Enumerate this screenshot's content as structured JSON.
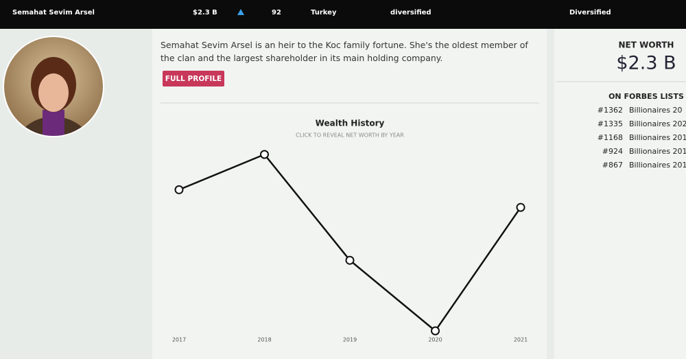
{
  "header": {
    "name": "Semahat Sevim Arsel",
    "net_worth": "$2.3 B",
    "rank": "92",
    "country": "Turkey",
    "source": "diversified",
    "industry": "Diversified"
  },
  "profile": {
    "description": "Semahat Sevim Arsel is an heir to the Koc family fortune. She's the oldest member of the clan and the largest shareholder in its main holding company.",
    "button": "FULL PROFILE"
  },
  "chart_data": {
    "type": "line",
    "title": "Wealth History",
    "subtitle": "CLICK TO REVEAL NET WORTH BY YEAR",
    "categories": [
      "2017",
      "2018",
      "2019",
      "2020",
      "2021"
    ],
    "values": [
      2.5,
      2.9,
      1.7,
      0.9,
      2.3
    ],
    "color": "#111111",
    "ylim": [
      0.9,
      2.9
    ]
  },
  "sidebar": {
    "net_worth_label": "NET WORTH",
    "net_worth": "$2.3 B",
    "lists_label": "ON FORBES LISTS",
    "lists": [
      {
        "rank": "#1362",
        "name": "Billionaires 20"
      },
      {
        "rank": "#1335",
        "name": "Billionaires 202"
      },
      {
        "rank": "#1168",
        "name": "Billionaires 201"
      },
      {
        "rank": "#924",
        "name": "Billionaires 201"
      },
      {
        "rank": "#867",
        "name": "Billionaires 201"
      }
    ]
  }
}
